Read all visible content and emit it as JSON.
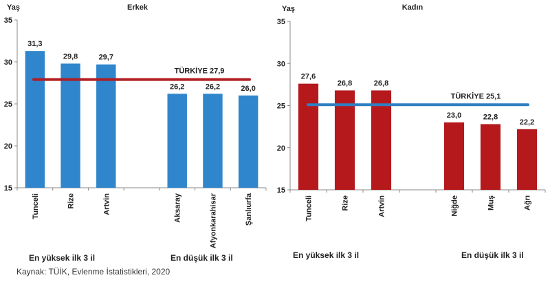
{
  "source": "Kaynak: TÜİK, Evlenme İstatistikleri, 2020",
  "chart_data": [
    {
      "type": "bar",
      "title": "Erkek",
      "ylabel": "Yaş",
      "ylim": [
        15,
        35
      ],
      "yticks": [
        "15",
        "20",
        "25",
        "30",
        "35"
      ],
      "categories": [
        "Tunceli",
        "Rize",
        "Artvin",
        "",
        "Aksaray",
        "Afyonkarahisar",
        "Şanlıurfa"
      ],
      "values": [
        31.3,
        29.8,
        29.7,
        null,
        26.2,
        26.2,
        26.0
      ],
      "data_labels": [
        "31,3",
        "29,8",
        "29,7",
        "",
        "26,2",
        "26,2",
        "26,0"
      ],
      "bar_color": "#2f86cc",
      "reference_line": {
        "label": "TÜRKİYE",
        "value": 27.9,
        "value_label": "27,9",
        "color": "#b01e23"
      },
      "group_labels": [
        "En yüksek ilk 3 il",
        "En düşük ilk 3 il"
      ],
      "grid": false
    },
    {
      "type": "bar",
      "title": "Kadın",
      "ylabel": "Yaş",
      "ylim": [
        15,
        35
      ],
      "yticks": [
        "15",
        "20",
        "25",
        "30",
        "35"
      ],
      "categories": [
        "Tunceli",
        "Rize",
        "Artvin",
        "",
        "Niğde",
        "Muş",
        "Ağrı"
      ],
      "values": [
        27.6,
        26.8,
        26.8,
        null,
        23.0,
        22.8,
        22.2
      ],
      "data_labels": [
        "27,6",
        "26,8",
        "26,8",
        "",
        "23,0",
        "22,8",
        "22,2"
      ],
      "bar_color": "#b5191c",
      "reference_line": {
        "label": "TÜRKİYE",
        "value": 25.1,
        "value_label": "25,1",
        "color": "#2f7fc1"
      },
      "group_labels": [
        "En yüksek ilk 3 il",
        "En düşük ilk 3 il"
      ],
      "grid": false
    }
  ]
}
